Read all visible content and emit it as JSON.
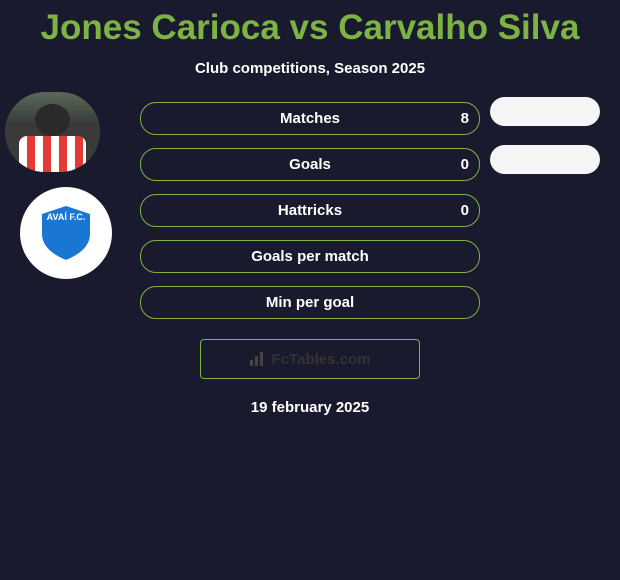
{
  "title": "Jones Carioca vs Carvalho Silva",
  "subtitle": "Club competitions, Season 2025",
  "player_left": {
    "jersey_colors": [
      "#ffffff",
      "#e53935"
    ]
  },
  "club_left": {
    "shield_text": "AVAÍ F.C.",
    "shield_color": "#1976d2"
  },
  "stats": [
    {
      "label": "Matches",
      "value_left": "8",
      "has_right_pill": true
    },
    {
      "label": "Goals",
      "value_left": "0",
      "has_right_pill": true
    },
    {
      "label": "Hattricks",
      "value_left": "0",
      "has_right_pill": false
    },
    {
      "label": "Goals per match",
      "value_left": "",
      "has_right_pill": false
    },
    {
      "label": "Min per goal",
      "value_left": "",
      "has_right_pill": false
    }
  ],
  "brand": "FcTables.com",
  "date": "19 february 2025",
  "colors": {
    "accent": "#7cb342",
    "background": "#1a1a2e",
    "text": "#ffffff",
    "pill_bg": "#f5f5f5"
  }
}
